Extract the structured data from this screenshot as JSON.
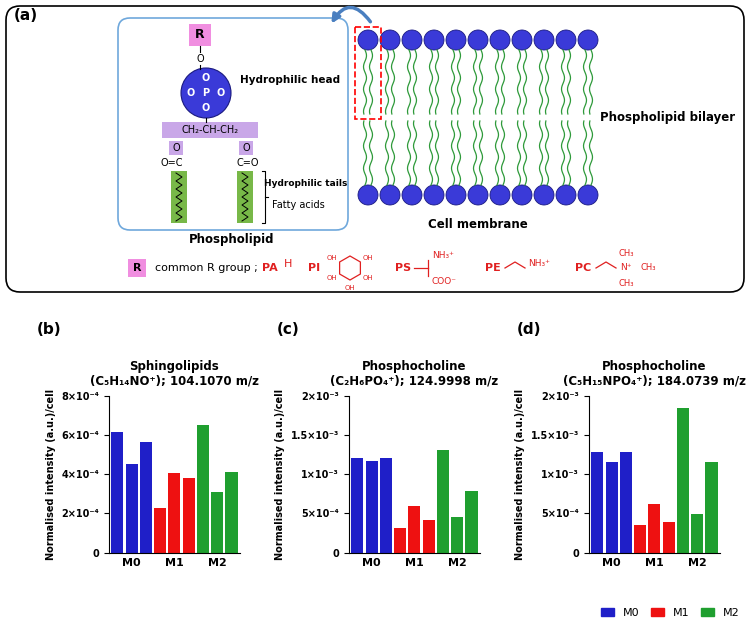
{
  "diagram": {
    "panel": "(a)",
    "phospholipid": {
      "label": "Phospholipid",
      "head_group": "R",
      "linker": "O",
      "phosphate": [
        "O",
        "O",
        "P",
        "O",
        "O"
      ],
      "glycerol": "CH₂-CH-CH₂",
      "ester_oxygens": [
        "O",
        "O"
      ],
      "carbonyls": [
        "O=C",
        "C=O"
      ],
      "head_label": "Hydrophilic head",
      "tails_label": "Hydrophilic tails",
      "fatty_acids_label": "Fatty acids"
    },
    "membrane": {
      "bilayer_label": "Phospholipid bilayer",
      "label": "Cell membrane"
    },
    "r_groups": {
      "symbol": "R",
      "label": "common R group ;",
      "groups": [
        {
          "name": "PA",
          "structure": [
            "H"
          ]
        },
        {
          "name": "PI",
          "structure": [
            "OH",
            "OH",
            "OH",
            "OH",
            "OH"
          ]
        },
        {
          "name": "PS",
          "structure": [
            "NH₃⁺",
            "COO⁻"
          ]
        },
        {
          "name": "PE",
          "structure": [
            "NH₃⁺"
          ]
        },
        {
          "name": "PC",
          "structure": [
            "N⁺",
            "CH₃",
            "CH₃",
            "CH₃"
          ]
        }
      ]
    }
  },
  "chart_data": [
    {
      "type": "bar",
      "panel": "(b)",
      "title": "Sphingolipids\n(C₅H₁₄NO⁺); 104.1070 m/z",
      "ylabel": "Normalised intensity (a.u.)/cell",
      "categories": [
        null,
        "M0",
        null,
        null,
        "M1",
        null,
        null,
        "M2",
        null
      ],
      "series": [
        {
          "name": "M0",
          "color": "#1f1fc8",
          "values": [
            0.000615,
            0.00045,
            0.000565,
            null,
            null,
            null,
            null,
            null,
            null
          ]
        },
        {
          "name": "M1",
          "color": "#ee1111",
          "values": [
            null,
            null,
            null,
            0.00023,
            0.000405,
            0.00038,
            null,
            null,
            null
          ]
        },
        {
          "name": "M2",
          "color": "#1f9f2f",
          "values": [
            null,
            null,
            null,
            null,
            null,
            null,
            0.00065,
            0.00031,
            0.00041
          ]
        }
      ],
      "ylim": [
        0,
        0.0008
      ],
      "yticks": [
        0,
        {
          "value": 0.0002,
          "label": "2×10⁻⁴"
        },
        {
          "value": 0.0004,
          "label": "4×10⁻⁴"
        },
        {
          "value": 0.0006,
          "label": "6×10⁻⁴"
        },
        {
          "value": 0.0008,
          "label": "8×10⁻⁴"
        }
      ]
    },
    {
      "type": "bar",
      "panel": "(c)",
      "title": "Phosphocholine\n(C₂H₆PO₄⁺); 124.9998 m/z",
      "ylabel": "Normalised intensity (a.u.)/cell",
      "categories": [
        null,
        "M0",
        null,
        null,
        "M1",
        null,
        null,
        "M2",
        null
      ],
      "series": [
        {
          "name": "M0",
          "color": "#1f1fc8",
          "values": [
            0.0012,
            0.00117,
            0.0012,
            null,
            null,
            null,
            null,
            null,
            null
          ]
        },
        {
          "name": "M1",
          "color": "#ee1111",
          "values": [
            null,
            null,
            null,
            0.00032,
            0.00059,
            0.00042,
            null,
            null,
            null
          ]
        },
        {
          "name": "M2",
          "color": "#1f9f2f",
          "values": [
            null,
            null,
            null,
            null,
            null,
            null,
            0.00131,
            0.00045,
            0.00078
          ]
        }
      ],
      "ylim": [
        0,
        0.002
      ],
      "yticks": [
        0,
        {
          "value": 0.0005,
          "label": "5×10⁻⁴"
        },
        {
          "value": 0.001,
          "label": "1×10⁻³"
        },
        {
          "value": 0.0015,
          "label": "1.5×10⁻³"
        },
        {
          "value": 0.002,
          "label": "2×10⁻³"
        }
      ]
    },
    {
      "type": "bar",
      "panel": "(d)",
      "title": "Phosphocholine\n(C₅H₁₅NPO₄⁺); 184.0739 m/z",
      "ylabel": "Normalised intensity (a.u.)/cell",
      "categories": [
        null,
        "M0",
        null,
        null,
        "M1",
        null,
        null,
        "M2",
        null
      ],
      "series": [
        {
          "name": "M0",
          "color": "#1f1fc8",
          "values": [
            0.00128,
            0.00115,
            0.00128,
            null,
            null,
            null,
            null,
            null,
            null
          ]
        },
        {
          "name": "M1",
          "color": "#ee1111",
          "values": [
            null,
            null,
            null,
            0.00035,
            0.00062,
            0.00039,
            null,
            null,
            null
          ]
        },
        {
          "name": "M2",
          "color": "#1f9f2f",
          "values": [
            null,
            null,
            null,
            null,
            null,
            null,
            0.00184,
            0.00049,
            0.00115
          ]
        }
      ],
      "ylim": [
        0,
        0.002
      ],
      "yticks": [
        0,
        {
          "value": 0.0005,
          "label": "5×10⁻⁴"
        },
        {
          "value": 0.001,
          "label": "1×10⁻³"
        },
        {
          "value": 0.0015,
          "label": "1.5×10⁻³"
        },
        {
          "value": 0.002,
          "label": "2×10⁻³"
        }
      ],
      "legend": "lower right"
    }
  ]
}
